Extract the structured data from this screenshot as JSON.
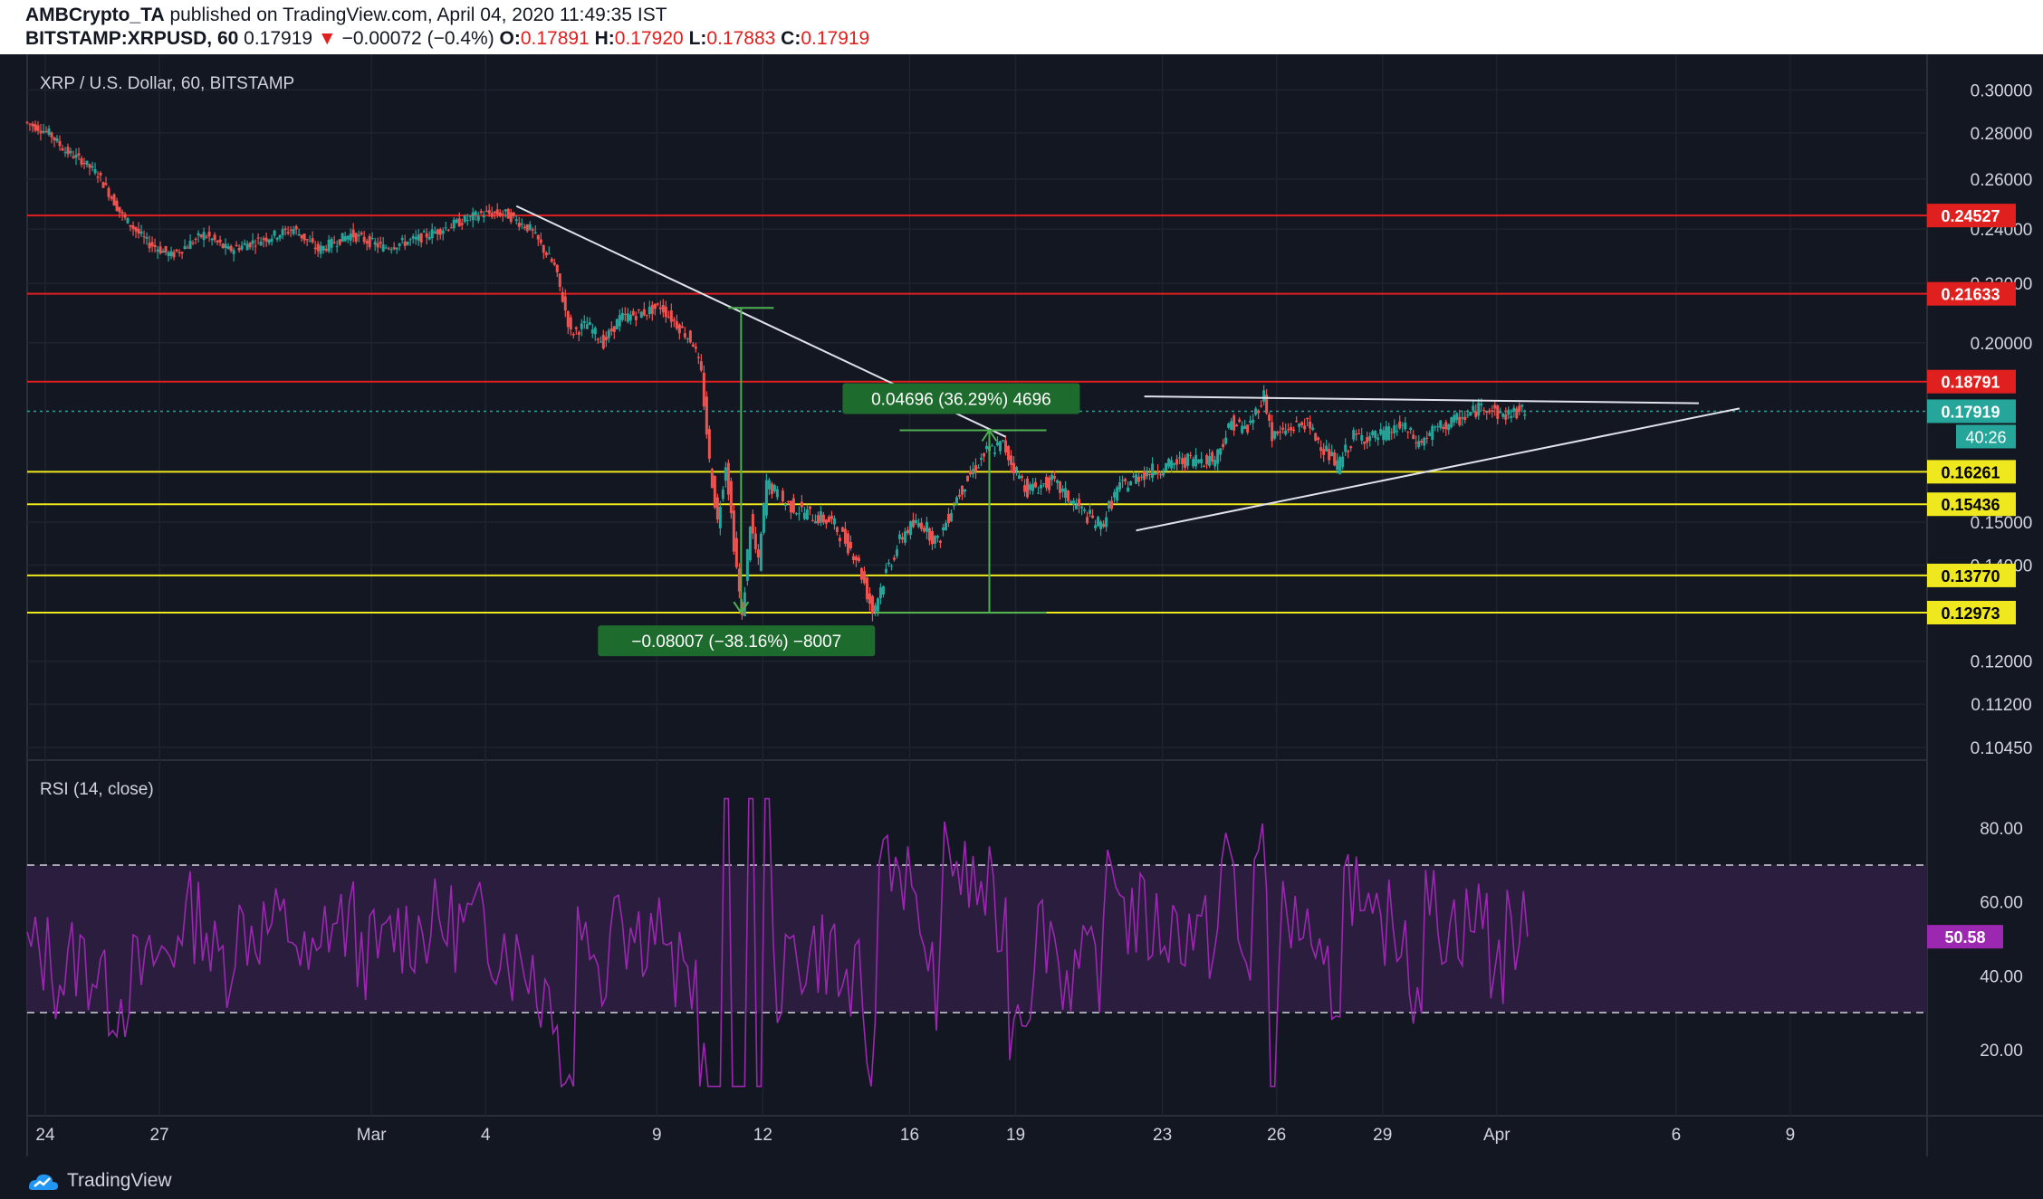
{
  "header": {
    "author": "AMBCrypto_TA",
    "published_text": "published on TradingView.com, April 04, 2020 11:49:35 IST",
    "symbol": "BITSTAMP:XRPUSD, 60",
    "last": "0.17919",
    "change_arrow": "▼",
    "change": "−0.00072 (−0.4%)",
    "o_label": "O:",
    "o_value": "0.17891",
    "h_label": "H:",
    "h_value": "0.17920",
    "l_label": "L:",
    "l_value": "0.17883",
    "c_label": "C:",
    "c_value": "0.17919"
  },
  "chart_data": [
    {
      "type": "candlestick",
      "title": "XRP / U.S. Dollar, 60, BITSTAMP",
      "x_tick_labels": [
        "24",
        "27",
        "Mar",
        "4",
        "9",
        "12",
        "16",
        "19",
        "23",
        "26",
        "29",
        "Apr",
        "6",
        "9"
      ],
      "y_tick_labels": [
        "0.30000",
        "0.28000",
        "0.26000",
        "0.24000",
        "0.22000",
        "0.20000",
        "0.15000",
        "0.14000",
        "0.12000",
        "0.11200",
        "0.10450"
      ],
      "y_scale": "log",
      "ylim": [
        0.1045,
        0.305
      ],
      "grid": true,
      "price_path": [
        {
          "x": 0,
          "y": 0.285
        },
        {
          "x": 3,
          "y": 0.28
        },
        {
          "x": 5,
          "y": 0.272
        },
        {
          "x": 7,
          "y": 0.268
        },
        {
          "x": 9,
          "y": 0.262
        },
        {
          "x": 12,
          "y": 0.245
        },
        {
          "x": 15,
          "y": 0.235
        },
        {
          "x": 18,
          "y": 0.23
        },
        {
          "x": 22,
          "y": 0.238
        },
        {
          "x": 25,
          "y": 0.232
        },
        {
          "x": 29,
          "y": 0.236
        },
        {
          "x": 33,
          "y": 0.24
        },
        {
          "x": 36,
          "y": 0.232
        },
        {
          "x": 40,
          "y": 0.238
        },
        {
          "x": 44,
          "y": 0.233
        },
        {
          "x": 48,
          "y": 0.236
        },
        {
          "x": 52,
          "y": 0.241
        },
        {
          "x": 56,
          "y": 0.246
        },
        {
          "x": 59,
          "y": 0.246
        },
        {
          "x": 62,
          "y": 0.24
        },
        {
          "x": 65,
          "y": 0.226
        },
        {
          "x": 67,
          "y": 0.203
        },
        {
          "x": 69,
          "y": 0.206
        },
        {
          "x": 71,
          "y": 0.2
        },
        {
          "x": 73,
          "y": 0.208
        },
        {
          "x": 76,
          "y": 0.21
        },
        {
          "x": 78,
          "y": 0.212
        },
        {
          "x": 80,
          "y": 0.206
        },
        {
          "x": 82,
          "y": 0.2
        },
        {
          "x": 83,
          "y": 0.19
        },
        {
          "x": 84,
          "y": 0.165
        },
        {
          "x": 85,
          "y": 0.15
        },
        {
          "x": 86,
          "y": 0.165
        },
        {
          "x": 87,
          "y": 0.145
        },
        {
          "x": 88,
          "y": 0.128
        },
        {
          "x": 89,
          "y": 0.15
        },
        {
          "x": 90,
          "y": 0.14
        },
        {
          "x": 91,
          "y": 0.16
        },
        {
          "x": 93,
          "y": 0.155
        },
        {
          "x": 96,
          "y": 0.152
        },
        {
          "x": 99,
          "y": 0.15
        },
        {
          "x": 102,
          "y": 0.142
        },
        {
          "x": 104,
          "y": 0.13
        },
        {
          "x": 106,
          "y": 0.14
        },
        {
          "x": 108,
          "y": 0.148
        },
        {
          "x": 110,
          "y": 0.15
        },
        {
          "x": 112,
          "y": 0.145
        },
        {
          "x": 114,
          "y": 0.155
        },
        {
          "x": 116,
          "y": 0.162
        },
        {
          "x": 118,
          "y": 0.168
        },
        {
          "x": 120,
          "y": 0.17
        },
        {
          "x": 121,
          "y": 0.165
        },
        {
          "x": 123,
          "y": 0.158
        },
        {
          "x": 126,
          "y": 0.16
        },
        {
          "x": 128,
          "y": 0.156
        },
        {
          "x": 130,
          "y": 0.152
        },
        {
          "x": 132,
          "y": 0.149
        },
        {
          "x": 134,
          "y": 0.158
        },
        {
          "x": 137,
          "y": 0.162
        },
        {
          "x": 140,
          "y": 0.164
        },
        {
          "x": 143,
          "y": 0.166
        },
        {
          "x": 146,
          "y": 0.166
        },
        {
          "x": 148,
          "y": 0.176
        },
        {
          "x": 150,
          "y": 0.174
        },
        {
          "x": 152,
          "y": 0.184
        },
        {
          "x": 153,
          "y": 0.172
        },
        {
          "x": 155,
          "y": 0.174
        },
        {
          "x": 157,
          "y": 0.176
        },
        {
          "x": 159,
          "y": 0.17
        },
        {
          "x": 161,
          "y": 0.164
        },
        {
          "x": 163,
          "y": 0.172
        },
        {
          "x": 166,
          "y": 0.172
        },
        {
          "x": 169,
          "y": 0.175
        },
        {
          "x": 171,
          "y": 0.17
        },
        {
          "x": 173,
          "y": 0.174
        },
        {
          "x": 175,
          "y": 0.176
        },
        {
          "x": 177,
          "y": 0.178
        },
        {
          "x": 179,
          "y": 0.181
        },
        {
          "x": 181,
          "y": 0.178
        },
        {
          "x": 183,
          "y": 0.179
        },
        {
          "x": 184,
          "y": 0.17919
        }
      ],
      "horizontal_levels": [
        {
          "value": 0.24527,
          "label": "0.24527",
          "color": "#e0201f"
        },
        {
          "value": 0.21633,
          "label": "0.21633",
          "color": "#e0201f"
        },
        {
          "value": 0.18791,
          "label": "0.18791",
          "color": "#e0201f"
        },
        {
          "value": 0.16261,
          "label": "0.16261",
          "color": "#f0e81e"
        },
        {
          "value": 0.15436,
          "label": "0.15436",
          "color": "#f0e81e"
        },
        {
          "value": 0.1377,
          "label": "0.13770",
          "color": "#f0e81e"
        },
        {
          "value": 0.12973,
          "label": "0.12973",
          "color": "#f0e81e"
        }
      ],
      "last_price": {
        "value": 0.17919,
        "label": "0.17919",
        "countdown": "40:26",
        "color": "#26a69a"
      },
      "annotations": [
        {
          "text": "0.04696 (36.29%) 4696",
          "kind": "measure-up"
        },
        {
          "text": "−0.08007 (−38.16%) −8007",
          "kind": "measure-down"
        }
      ],
      "trend_lines": [
        "descending resistance",
        "ascending support",
        "flat resistance"
      ]
    },
    {
      "type": "line",
      "title": "RSI (14, close)",
      "y_tick_labels": [
        "80.00",
        "60.00",
        "40.00",
        "20.00"
      ],
      "ylim": [
        5,
        95
      ],
      "bands": {
        "upper": 70,
        "lower": 30,
        "fill": "#2a1d3e",
        "line": "#d1d4dc"
      },
      "current": {
        "value": 50.58,
        "label": "50.58",
        "color": "#9c27b0"
      },
      "color": "#9c27b0"
    }
  ],
  "footer": {
    "brand": "TradingView"
  }
}
